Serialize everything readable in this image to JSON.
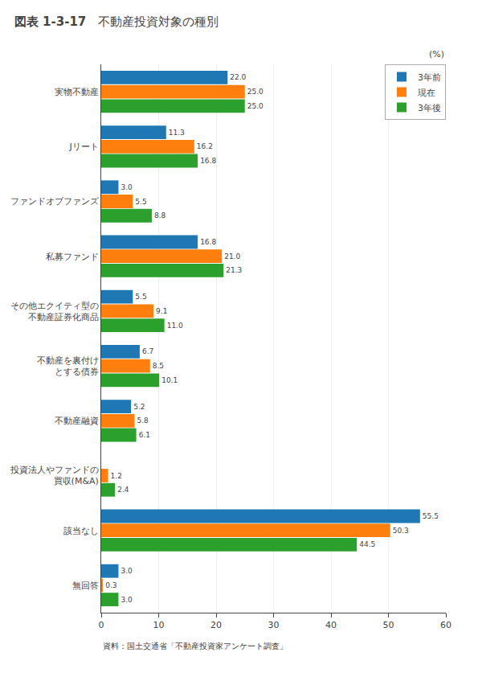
{
  "chart_data": {
    "type": "bar",
    "orientation": "horizontal",
    "label": "図表 1-3-17",
    "title": "不動産投資対象の種別",
    "source": "資料：国土交通省「不動産投資家アンケート調査」",
    "xlabel": "(%)",
    "categories": [
      "実物不動産",
      "Jリート",
      "ファンドオブファンズ",
      "私募ファンド",
      "その他エクイティ型の\n不動産証券化商品",
      "不動産を裏付け\nとする債券",
      "不動産融資",
      "投資法人やファンドの\n買収(M&A)",
      "該当なし",
      "無回答"
    ],
    "series": [
      {
        "name": "3年前",
        "values": [
          22.0,
          11.3,
          3.0,
          16.8,
          5.5,
          6.7,
          5.2,
          0.0,
          55.5,
          3.0
        ],
        "value_labels": [
          "22.0",
          "11.3",
          "3.0",
          "16.8",
          "5.5",
          "6.7",
          "5.2",
          null,
          "55.5",
          "3.0"
        ]
      },
      {
        "name": "現在",
        "values": [
          25.0,
          16.2,
          5.5,
          21.0,
          9.1,
          8.5,
          5.8,
          1.2,
          50.3,
          0.3
        ],
        "value_labels": [
          "25.0",
          "16.2",
          "5.5",
          "21.0",
          "9.1",
          "8.5",
          "5.8",
          "1.2",
          "50.3",
          "0.3"
        ]
      },
      {
        "name": "3年後",
        "values": [
          25.0,
          16.8,
          8.8,
          21.3,
          11.0,
          10.1,
          6.1,
          2.4,
          44.5,
          3.0
        ],
        "value_labels": [
          "25.0",
          "16.8",
          "8.8",
          "21.3",
          "11.0",
          "10.1",
          "6.1",
          "2.4",
          "44.5",
          "3.0"
        ]
      }
    ],
    "xlim": [
      0,
      60
    ],
    "xticks": [
      0,
      10,
      20,
      30,
      40,
      50,
      60
    ],
    "grid": true,
    "legend": "upper right",
    "data_labels": true
  }
}
